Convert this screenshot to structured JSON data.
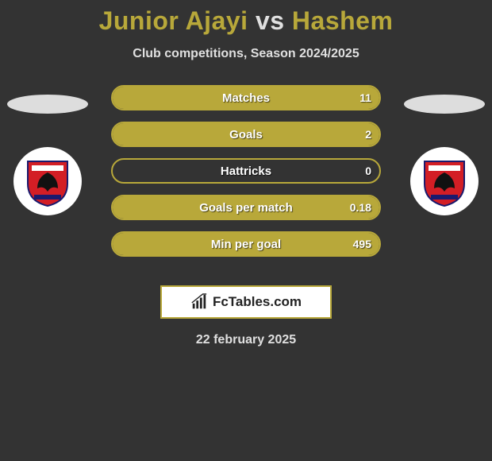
{
  "title": {
    "player_a": "Junior Ajayi",
    "vs": "vs",
    "player_b": "Hashem",
    "color_highlight": "#b8a83a",
    "color_vs": "#e0e0e0",
    "fontsize": 32
  },
  "subtitle": "Club competitions, Season 2024/2025",
  "date": "22 february 2025",
  "background_color": "#333333",
  "bar_border_color": "#b8a83a",
  "bar_fill_color": "#b8a83a",
  "bar_text_color": "#ffffff",
  "player_a": {
    "flag_color": "#dddddd",
    "club_badge_bg": "#ffffff",
    "club_badge_primary": "#d31e25",
    "club_badge_secondary": "#1a1a6e",
    "club_badge_bird": "#111111"
  },
  "player_b": {
    "flag_color": "#dddddd",
    "club_badge_bg": "#ffffff",
    "club_badge_primary": "#d31e25",
    "club_badge_secondary": "#1a1a6e",
    "club_badge_bird": "#111111"
  },
  "stats": [
    {
      "label": "Matches",
      "a": "",
      "b": "11",
      "fill_left_pct": 0,
      "fill_right_pct": 100
    },
    {
      "label": "Goals",
      "a": "",
      "b": "2",
      "fill_left_pct": 0,
      "fill_right_pct": 100
    },
    {
      "label": "Hattricks",
      "a": "",
      "b": "0",
      "fill_left_pct": 0,
      "fill_right_pct": 0
    },
    {
      "label": "Goals per match",
      "a": "",
      "b": "0.18",
      "fill_left_pct": 0,
      "fill_right_pct": 100
    },
    {
      "label": "Min per goal",
      "a": "",
      "b": "495",
      "fill_left_pct": 0,
      "fill_right_pct": 100
    }
  ],
  "brand": {
    "text": "FcTables.com",
    "box_bg": "#ffffff",
    "box_border": "#b8a83a",
    "icon_color": "#222222"
  }
}
